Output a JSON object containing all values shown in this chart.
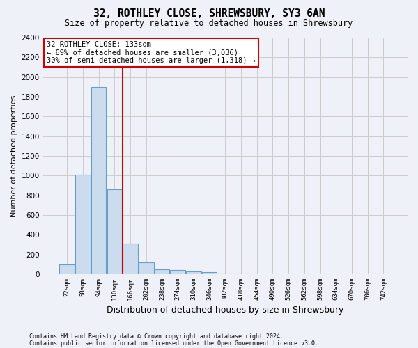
{
  "title1": "32, ROTHLEY CLOSE, SHREWSBURY, SY3 6AN",
  "title2": "Size of property relative to detached houses in Shrewsbury",
  "xlabel": "Distribution of detached houses by size in Shrewsbury",
  "ylabel": "Number of detached properties",
  "categories": [
    "22sqm",
    "58sqm",
    "94sqm",
    "130sqm",
    "166sqm",
    "202sqm",
    "238sqm",
    "274sqm",
    "310sqm",
    "346sqm",
    "382sqm",
    "418sqm",
    "454sqm",
    "490sqm",
    "526sqm",
    "562sqm",
    "598sqm",
    "634sqm",
    "670sqm",
    "706sqm",
    "742sqm"
  ],
  "values": [
    100,
    1010,
    1900,
    860,
    310,
    120,
    50,
    40,
    30,
    20,
    10,
    5,
    3,
    2,
    1,
    1,
    0,
    0,
    0,
    0,
    0
  ],
  "bar_color": "#ccdcef",
  "bar_edge_color": "#6a9ec8",
  "redline_x": 3.5,
  "annotation_line1": "32 ROTHLEY CLOSE: 133sqm",
  "annotation_line2": "← 69% of detached houses are smaller (3,036)",
  "annotation_line3": "30% of semi-detached houses are larger (1,318) →",
  "ylim": [
    0,
    2400
  ],
  "yticks": [
    0,
    200,
    400,
    600,
    800,
    1000,
    1200,
    1400,
    1600,
    1800,
    2000,
    2200,
    2400
  ],
  "footer1": "Contains HM Land Registry data © Crown copyright and database right 2024.",
  "footer2": "Contains public sector information licensed under the Open Government Licence v3.0.",
  "background_color": "#eef2f8",
  "plot_bg_color": "#eef2f8",
  "grid_color": "#cccccc",
  "annotation_box_color": "#ffffff",
  "annotation_box_edge": "#cc0000",
  "redline_color": "#cc0000"
}
